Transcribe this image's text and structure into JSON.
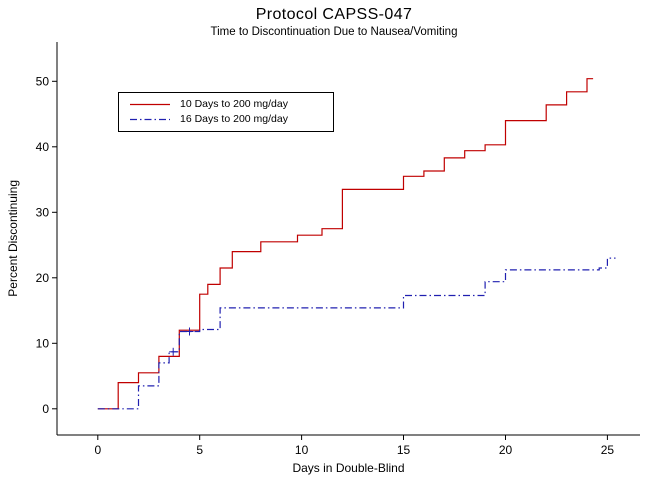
{
  "chart_data": {
    "type": "line",
    "subtype": "step-survival",
    "title": "Protocol CAPSS-047",
    "subtitle": "Time to Discontinuation Due to Nausea/Vomiting",
    "xlabel": "Days in Double-Blind",
    "ylabel": "Percent Discontinuing",
    "xlim": [
      -2,
      26.6
    ],
    "ylim": [
      -4,
      56
    ],
    "xticks": [
      0,
      5,
      10,
      15,
      20,
      25
    ],
    "yticks": [
      0,
      10,
      20,
      30,
      40,
      50
    ],
    "axis_color": "#000000",
    "background_color": "#ffffff",
    "grid": false,
    "legend_position": "top-left",
    "series": [
      {
        "name": "10 Days to 200 mg/day",
        "color": "#c00000",
        "style": "solid",
        "points": [
          [
            0,
            0
          ],
          [
            1,
            4
          ],
          [
            2,
            5.5
          ],
          [
            3,
            8
          ],
          [
            4,
            12
          ],
          [
            5,
            17.5
          ],
          [
            5.4,
            19
          ],
          [
            6,
            21.5
          ],
          [
            6.6,
            24
          ],
          [
            8,
            25.5
          ],
          [
            9.8,
            26.5
          ],
          [
            11,
            27.5
          ],
          [
            12,
            33.5
          ],
          [
            15,
            35.5
          ],
          [
            16,
            36.3
          ],
          [
            17,
            38.3
          ],
          [
            18,
            39.4
          ],
          [
            19,
            40.3
          ],
          [
            20,
            44
          ],
          [
            22,
            46.4
          ],
          [
            23,
            48.4
          ],
          [
            24,
            50.4
          ],
          [
            24.3,
            50.4
          ]
        ]
      },
      {
        "name": "16 Days to 200 mg/day",
        "color": "#2020b0",
        "style": "dash-dot",
        "points": [
          [
            0,
            0
          ],
          [
            2,
            3.5
          ],
          [
            3,
            7
          ],
          [
            3.5,
            8.7
          ],
          [
            4,
            11.8
          ],
          [
            5,
            12.1
          ],
          [
            6,
            15.4
          ],
          [
            15,
            17.3
          ],
          [
            19,
            19.4
          ],
          [
            20,
            21.2
          ],
          [
            24.6,
            21.5
          ],
          [
            25,
            23
          ],
          [
            25.4,
            23
          ]
        ],
        "censor_markers": [
          [
            3.7,
            8.7
          ],
          [
            4.5,
            11.8
          ]
        ]
      }
    ]
  }
}
